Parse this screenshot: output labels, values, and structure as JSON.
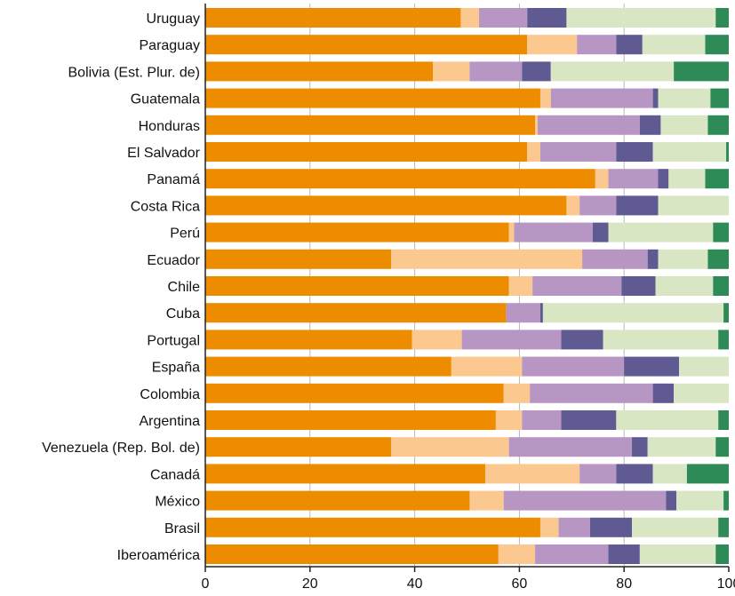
{
  "chart_data": {
    "type": "bar",
    "orientation": "horizontal",
    "stacked": true,
    "title": "",
    "xlabel": "",
    "ylabel": "",
    "xlim": [
      0,
      100
    ],
    "x_ticks": [
      "0",
      "20",
      "40",
      "60",
      "80",
      "100"
    ],
    "grid": "vertical",
    "legend": "none",
    "categories": [
      "Uruguay",
      "Paraguay",
      "Bolivia (Est. Plur. de)",
      "Guatemala",
      "Honduras",
      "El Salvador",
      "Panamá",
      "Costa Rica",
      "Perú",
      "Ecuador",
      "Chile",
      "Cuba",
      "Portugal",
      "España",
      "Colombia",
      "Argentina",
      "Venezuela (Rep. Bol. de)",
      "Canadá",
      "México",
      "Brasil",
      "Iberoamérica"
    ],
    "series": [
      {
        "color": "#ee8c00",
        "values": [
          48.8,
          61.5,
          43.5,
          64.0,
          63.0,
          61.5,
          74.5,
          69.0,
          58.0,
          35.5,
          58.0,
          57.5,
          39.5,
          47.0,
          57.0,
          55.5,
          35.5,
          53.5,
          50.5,
          64.0,
          56.0
        ]
      },
      {
        "color": "#fbc88f",
        "values": [
          3.5,
          9.5,
          7.0,
          2.0,
          0.5,
          2.5,
          2.5,
          2.5,
          1.0,
          36.5,
          4.5,
          0.0,
          9.5,
          13.5,
          5.0,
          5.0,
          22.5,
          18.0,
          6.5,
          3.5,
          7.0
        ]
      },
      {
        "color": "#b896c4",
        "values": [
          9.2,
          7.5,
          10.0,
          19.5,
          19.5,
          14.5,
          9.5,
          7.0,
          15.0,
          12.5,
          17.0,
          6.5,
          19.0,
          19.5,
          23.5,
          7.5,
          23.5,
          7.0,
          31.0,
          6.0,
          14.0
        ]
      },
      {
        "color": "#5f5a91",
        "values": [
          7.5,
          5.0,
          5.5,
          1.0,
          4.0,
          7.0,
          2.0,
          8.0,
          3.0,
          2.0,
          6.5,
          0.5,
          8.0,
          10.5,
          4.0,
          10.5,
          3.0,
          7.0,
          2.0,
          8.0,
          6.0
        ]
      },
      {
        "color": "#d8e6c4",
        "values": [
          28.5,
          12.0,
          23.5,
          10.0,
          9.0,
          14.0,
          7.0,
          13.5,
          20.0,
          9.5,
          11.0,
          34.5,
          22.0,
          9.5,
          10.5,
          19.5,
          13.0,
          6.5,
          9.0,
          16.5,
          14.5
        ]
      },
      {
        "color": "#2e8b57",
        "values": [
          2.5,
          4.5,
          10.5,
          3.5,
          4.0,
          0.5,
          4.5,
          0.0,
          3.0,
          4.0,
          3.0,
          1.0,
          2.0,
          0.0,
          0.0,
          2.0,
          2.5,
          8.0,
          1.0,
          2.0,
          2.5
        ]
      }
    ]
  }
}
